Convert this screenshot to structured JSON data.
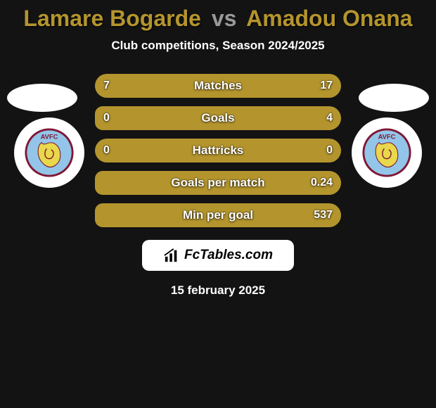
{
  "player1": {
    "name": "Lamare Bogarde",
    "color": "#b4952d"
  },
  "player2": {
    "name": "Amadou Onana",
    "color": "#b4952d"
  },
  "vs_label": "vs",
  "subtitle": "Club competitions, Season 2024/2025",
  "brand": "FcTables.com",
  "date": "15 february 2025",
  "colors": {
    "bg": "#131313",
    "text": "#ffffff",
    "brand_box": "#ffffff",
    "badge_bg": "#ffffff",
    "badge_ring": "#7f1734",
    "badge_body": "#e8d84b",
    "badge_letter": "#93c5e8"
  },
  "badges": {
    "left_text": "AVFC",
    "right_text": "AVFC"
  },
  "min_bar_pct": 3,
  "stats": [
    {
      "label": "Matches",
      "left_val": "7",
      "right_val": "17",
      "left_num": 7,
      "right_num": 17
    },
    {
      "label": "Goals",
      "left_val": "0",
      "right_val": "4",
      "left_num": 0,
      "right_num": 4
    },
    {
      "label": "Hattricks",
      "left_val": "0",
      "right_val": "0",
      "left_num": 0,
      "right_num": 0
    },
    {
      "label": "Goals per match",
      "left_val": "",
      "right_val": "0.24",
      "left_num": 0,
      "right_num": 0.24
    },
    {
      "label": "Min per goal",
      "left_val": "",
      "right_val": "537",
      "left_num": 0,
      "right_num": 537
    }
  ]
}
